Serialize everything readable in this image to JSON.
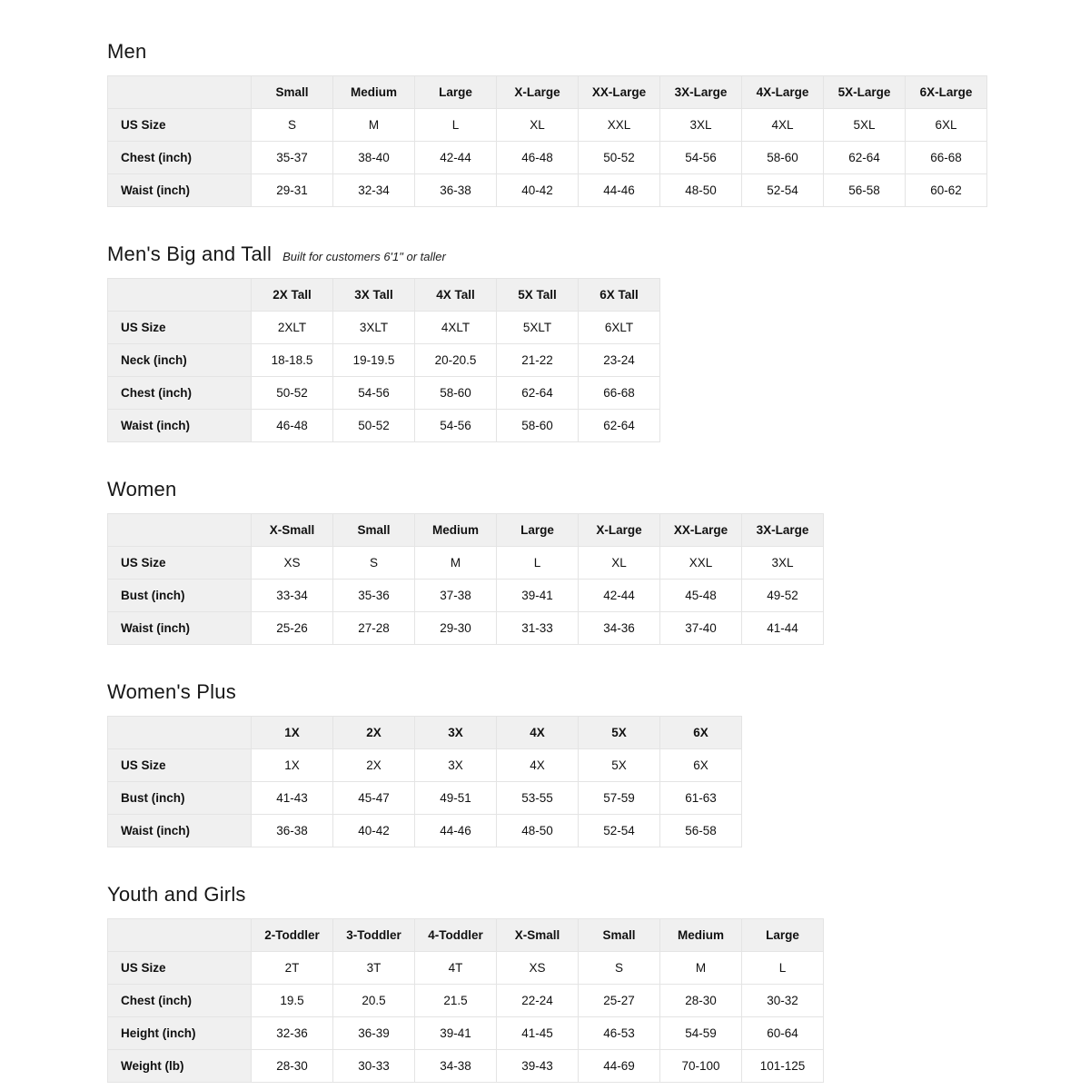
{
  "colors": {
    "page_background": "#ffffff",
    "table_header_background": "#f0f0f0",
    "table_border": "#e4e4e4",
    "text": "#111111"
  },
  "sections": [
    {
      "id": "men",
      "title": "Men",
      "subtitle": "",
      "columns": [
        "Small",
        "Medium",
        "Large",
        "X-Large",
        "XX-Large",
        "3X-Large",
        "4X-Large",
        "5X-Large",
        "6X-Large"
      ],
      "rows": [
        {
          "label": "US Size",
          "values": [
            "S",
            "M",
            "L",
            "XL",
            "XXL",
            "3XL",
            "4XL",
            "5XL",
            "6XL"
          ]
        },
        {
          "label": "Chest (inch)",
          "values": [
            "35-37",
            "38-40",
            "42-44",
            "46-48",
            "50-52",
            "54-56",
            "58-60",
            "62-64",
            "66-68"
          ]
        },
        {
          "label": "Waist (inch)",
          "values": [
            "29-31",
            "32-34",
            "36-38",
            "40-42",
            "44-46",
            "48-50",
            "52-54",
            "56-58",
            "60-62"
          ]
        }
      ]
    },
    {
      "id": "mens-big-and-tall",
      "title": "Men's Big and Tall",
      "subtitle": "Built for customers 6'1\" or taller",
      "columns": [
        "2X Tall",
        "3X Tall",
        "4X Tall",
        "5X Tall",
        "6X Tall"
      ],
      "rows": [
        {
          "label": "US Size",
          "values": [
            "2XLT",
            "3XLT",
            "4XLT",
            "5XLT",
            "6XLT"
          ]
        },
        {
          "label": "Neck (inch)",
          "values": [
            "18-18.5",
            "19-19.5",
            "20-20.5",
            "21-22",
            "23-24"
          ]
        },
        {
          "label": "Chest (inch)",
          "values": [
            "50-52",
            "54-56",
            "58-60",
            "62-64",
            "66-68"
          ]
        },
        {
          "label": "Waist (inch)",
          "values": [
            "46-48",
            "50-52",
            "54-56",
            "58-60",
            "62-64"
          ]
        }
      ]
    },
    {
      "id": "women",
      "title": "Women",
      "subtitle": "",
      "columns": [
        "X-Small",
        "Small",
        "Medium",
        "Large",
        "X-Large",
        "XX-Large",
        "3X-Large"
      ],
      "rows": [
        {
          "label": "US Size",
          "values": [
            "XS",
            "S",
            "M",
            "L",
            "XL",
            "XXL",
            "3XL"
          ]
        },
        {
          "label": "Bust (inch)",
          "values": [
            "33-34",
            "35-36",
            "37-38",
            "39-41",
            "42-44",
            "45-48",
            "49-52"
          ]
        },
        {
          "label": "Waist (inch)",
          "values": [
            "25-26",
            "27-28",
            "29-30",
            "31-33",
            "34-36",
            "37-40",
            "41-44"
          ]
        }
      ]
    },
    {
      "id": "womens-plus",
      "title": "Women's Plus",
      "subtitle": "",
      "columns": [
        "1X",
        "2X",
        "3X",
        "4X",
        "5X",
        "6X"
      ],
      "rows": [
        {
          "label": "US Size",
          "values": [
            "1X",
            "2X",
            "3X",
            "4X",
            "5X",
            "6X"
          ]
        },
        {
          "label": "Bust (inch)",
          "values": [
            "41-43",
            "45-47",
            "49-51",
            "53-55",
            "57-59",
            "61-63"
          ]
        },
        {
          "label": "Waist (inch)",
          "values": [
            "36-38",
            "40-42",
            "44-46",
            "48-50",
            "52-54",
            "56-58"
          ]
        }
      ]
    },
    {
      "id": "youth-and-girls",
      "title": "Youth and Girls",
      "subtitle": "",
      "columns": [
        "2-Toddler",
        "3-Toddler",
        "4-Toddler",
        "X-Small",
        "Small",
        "Medium",
        "Large"
      ],
      "rows": [
        {
          "label": "US Size",
          "values": [
            "2T",
            "3T",
            "4T",
            "XS",
            "S",
            "M",
            "L"
          ]
        },
        {
          "label": "Chest (inch)",
          "values": [
            "19.5",
            "20.5",
            "21.5",
            "22-24",
            "25-27",
            "28-30",
            "30-32"
          ]
        },
        {
          "label": "Height (inch)",
          "values": [
            "32-36",
            "36-39",
            "39-41",
            "41-45",
            "46-53",
            "54-59",
            "60-64"
          ]
        },
        {
          "label": "Weight (lb)",
          "values": [
            "28-30",
            "30-33",
            "34-38",
            "39-43",
            "44-69",
            "70-100",
            "101-125"
          ]
        }
      ]
    }
  ]
}
